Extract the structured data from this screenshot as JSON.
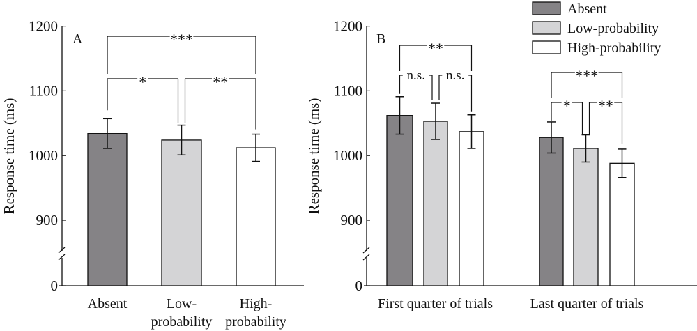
{
  "colors": {
    "Absent": "#858386",
    "Low-probability": "#d4d4d6",
    "High-probability": "#ffffff",
    "stroke": "#111111"
  },
  "legend": {
    "placement": "top-right",
    "entries": [
      "Absent",
      "Low-probability",
      "High-probability"
    ]
  },
  "chart_data": [
    {
      "type": "bar",
      "panel": "A",
      "ylabel": "Response time (ms)",
      "xlabel": "",
      "yticks": [
        0,
        900,
        1000,
        1100,
        1200
      ],
      "ylim": [
        0,
        1200
      ],
      "axis_break": "between 0 and 900",
      "categories": [
        "Absent",
        "Low-probability",
        "High-probability"
      ],
      "category_labels": [
        [
          "Absent"
        ],
        [
          "Low-",
          "probability"
        ],
        [
          "High-",
          "probability"
        ]
      ],
      "values": [
        1034,
        1024,
        1012
      ],
      "errors": [
        23,
        23,
        21
      ],
      "comparisons": [
        {
          "from": 0,
          "to": 2,
          "label": "***",
          "level": 2
        },
        {
          "from": 0,
          "to": 1,
          "label": "*",
          "level": 1
        },
        {
          "from": 1,
          "to": 2,
          "label": "**",
          "level": 1
        }
      ]
    },
    {
      "type": "bar",
      "panel": "B",
      "ylabel": "Response time (ms)",
      "xlabel": "",
      "yticks": [
        0,
        900,
        1000,
        1100,
        1200
      ],
      "ylim": [
        0,
        1200
      ],
      "axis_break": "between 0 and 900",
      "categories": [
        "First quarter of trials",
        "Last quarter of trials"
      ],
      "series": [
        {
          "name": "Absent",
          "values": [
            1062,
            1028
          ],
          "errors": [
            29,
            24
          ]
        },
        {
          "name": "Low-probability",
          "values": [
            1053,
            1011
          ],
          "errors": [
            28,
            21
          ]
        },
        {
          "name": "High-probability",
          "values": [
            1037,
            988
          ],
          "errors": [
            26,
            22
          ]
        }
      ],
      "comparisons": [
        {
          "group": 0,
          "from": 0,
          "to": 2,
          "label": "**",
          "level": 2
        },
        {
          "group": 0,
          "from": 0,
          "to": 1,
          "label": "n.s.",
          "level": 1
        },
        {
          "group": 0,
          "from": 1,
          "to": 2,
          "label": "n.s.",
          "level": 1
        },
        {
          "group": 1,
          "from": 0,
          "to": 2,
          "label": "***",
          "level": 2
        },
        {
          "group": 1,
          "from": 0,
          "to": 1,
          "label": "*",
          "level": 1
        },
        {
          "group": 1,
          "from": 1,
          "to": 2,
          "label": "**",
          "level": 1
        }
      ]
    }
  ]
}
